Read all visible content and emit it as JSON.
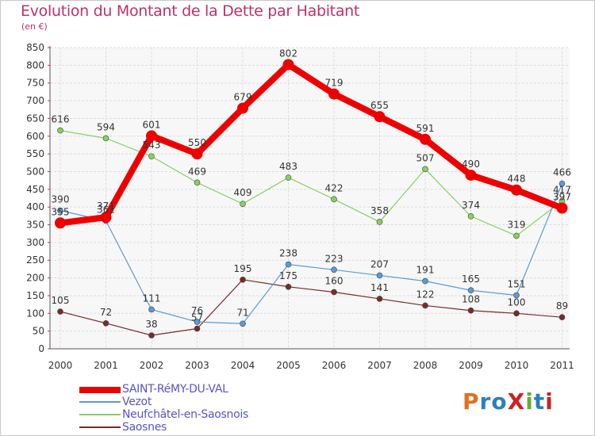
{
  "title": "Evolution du Montant de la Dette par Habitant",
  "subtitle": "(en €)",
  "logo": {
    "text": "ProXiti",
    "colors": [
      "#e07020",
      "#2a7fc0",
      "#2a7fc0",
      "#d02020",
      "#60b030",
      "#2a7fc0",
      "#d02020"
    ]
  },
  "chart_data": {
    "type": "line",
    "x": [
      "2000",
      "2001",
      "2002",
      "2003",
      "2004",
      "2005",
      "2006",
      "2007",
      "2008",
      "2009",
      "2010",
      "2011"
    ],
    "ylim": [
      0,
      850
    ],
    "yticks": [
      0,
      50,
      100,
      150,
      200,
      250,
      300,
      350,
      400,
      450,
      500,
      550,
      600,
      650,
      700,
      750,
      800,
      850
    ],
    "grid": true,
    "legend_position": "bottom-left",
    "series": [
      {
        "name": "SAINT-RéMY-DU-VAL",
        "color": "#ee0000",
        "values": [
          355,
          371,
          601,
          550,
          679,
          802,
          719,
          655,
          591,
          490,
          448,
          397
        ],
        "labels": [
          "355",
          "371",
          "601",
          "550",
          "679",
          "802",
          "719",
          "655",
          "591",
          "490",
          "448",
          "397"
        ]
      },
      {
        "name": "Vezot",
        "color": "#5b9bd5",
        "values": [
          390,
          361,
          111,
          76,
          71,
          238,
          223,
          207,
          191,
          165,
          151,
          466
        ],
        "labels": [
          "390",
          "361",
          "111",
          "76",
          "71",
          "238",
          "223",
          "207",
          "191",
          "165",
          "151",
          "466"
        ]
      },
      {
        "name": "Neufchâtel-en-Saosnois",
        "color": "#88d060",
        "values": [
          616,
          594,
          543,
          469,
          409,
          483,
          422,
          358,
          507,
          374,
          319,
          417
        ],
        "labels": [
          "616",
          "594",
          "543",
          "469",
          "409",
          "483",
          "422",
          "358",
          "507",
          "374",
          "319",
          "417"
        ]
      },
      {
        "name": "Saosnes",
        "color": "#7a2a2a",
        "values": [
          105,
          72,
          38,
          57,
          195,
          175,
          160,
          141,
          122,
          108,
          100,
          89
        ],
        "labels": [
          "105",
          "72",
          "38",
          "57",
          "195",
          "175",
          "160",
          "141",
          "122",
          "108",
          "100",
          "89"
        ]
      }
    ]
  }
}
